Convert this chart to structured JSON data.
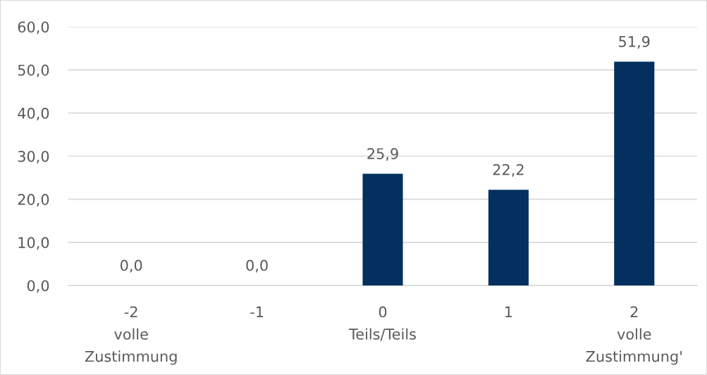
{
  "chart_data": {
    "type": "bar",
    "categories": [
      "-2\nvolle\nZustimmung",
      "-1",
      "0\nTeils/Teils",
      "1",
      "2\nvolle\nZustimmung'"
    ],
    "values": [
      0.0,
      0.0,
      25.9,
      22.2,
      51.9
    ],
    "value_labels": [
      "0,0",
      "0,0",
      "25,9",
      "22,2",
      "51,9"
    ],
    "color": "#03305f",
    "ylim": [
      0,
      60
    ],
    "yticks": [
      {
        "value": 0,
        "label": "0,0"
      },
      {
        "value": 10,
        "label": "10,0"
      },
      {
        "value": 20,
        "label": "20,0"
      },
      {
        "value": 30,
        "label": "30,0"
      },
      {
        "value": 40,
        "label": "40,0"
      },
      {
        "value": 50,
        "label": "50,0"
      },
      {
        "value": 60,
        "label": "60,0"
      }
    ],
    "grid": "y"
  }
}
